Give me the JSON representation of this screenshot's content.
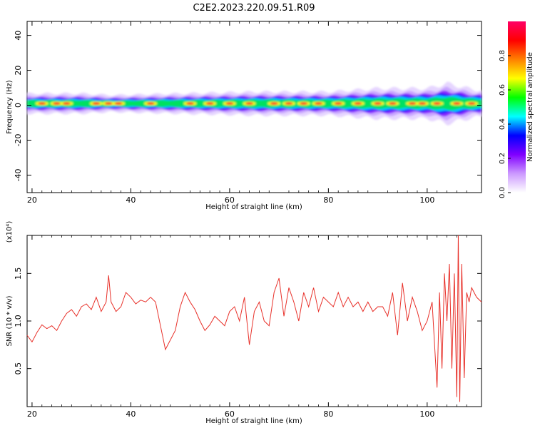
{
  "figure_title": "C2E2.2023.220.09.51.R09",
  "chart_data": [
    {
      "type": "heatmap",
      "title": "",
      "xlabel": "Height of straight line (km)",
      "ylabel": "Frequency (Hz)",
      "xlim": [
        19,
        111
      ],
      "ylim": [
        -50,
        48
      ],
      "xticks": [
        "20",
        "40",
        "60",
        "80",
        "100"
      ],
      "yticks": [
        "-40",
        "-20",
        "0",
        "20",
        "40"
      ],
      "colorbar": {
        "label": "Normalized spectral amplitude",
        "range": [
          0,
          1
        ],
        "ticks": [
          "0.0",
          "0.2",
          "0.4",
          "0.6",
          "0.8"
        ],
        "colors": [
          "#ffffff",
          "#cc99ff",
          "#8000ff",
          "#0000ff",
          "#00ffff",
          "#00ff00",
          "#ffff00",
          "#ff8000",
          "#ff0000",
          "#ff0066"
        ]
      },
      "band": {
        "center_freq_hz": 1,
        "halfwidth_hz_by_height": [
          [
            20,
            3
          ],
          [
            30,
            3
          ],
          [
            36,
            2.5
          ],
          [
            50,
            3
          ],
          [
            65,
            3.5
          ],
          [
            80,
            3.5
          ],
          [
            90,
            4.5
          ],
          [
            100,
            4.5
          ],
          [
            104,
            6
          ],
          [
            110,
            4
          ]
        ],
        "peak_heights_km": [
          22,
          25,
          27,
          33,
          35.5,
          37.5,
          44,
          52,
          56,
          60,
          64,
          69,
          72,
          75,
          78,
          82,
          86,
          90,
          93,
          97,
          99,
          102,
          106,
          109
        ]
      }
    },
    {
      "type": "line",
      "title": "",
      "xlabel": "Height of straight line (km)",
      "ylabel": "SNR (10 * v/v)",
      "scale_label": "(x10⁴)",
      "xlim": [
        19,
        111
      ],
      "ylim": [
        0.1,
        1.9
      ],
      "xticks": [
        "20",
        "40",
        "60",
        "80",
        "100"
      ],
      "yticks": [
        "0.5",
        "1.0",
        "1.5"
      ],
      "line_color": "#e8312a",
      "series": [
        {
          "x": [
            19,
            20,
            21,
            22,
            23,
            24,
            25,
            26,
            27,
            28,
            29,
            30,
            31,
            32,
            33,
            34,
            35,
            35.5,
            36,
            37,
            38,
            39,
            40,
            41,
            42,
            43,
            44,
            45,
            46,
            47,
            48,
            49,
            50,
            51,
            52,
            53,
            54,
            55,
            56,
            57,
            58,
            59,
            60,
            61,
            62,
            63,
            64,
            65,
            66,
            67,
            68,
            69,
            70,
            71,
            72,
            73,
            74,
            75,
            76,
            77,
            78,
            79,
            80,
            81,
            82,
            83,
            84,
            85,
            86,
            87,
            88,
            89,
            90,
            91,
            92,
            93,
            94,
            95,
            96,
            97,
            98,
            99,
            100,
            101,
            102,
            102.5,
            103,
            103.5,
            104,
            104.5,
            105,
            105.5,
            106,
            106.3,
            106.6,
            107,
            107.5,
            108,
            108.5,
            109,
            110,
            111
          ],
          "y": [
            0.85,
            0.78,
            0.88,
            0.96,
            0.92,
            0.95,
            0.9,
            1.0,
            1.08,
            1.12,
            1.05,
            1.15,
            1.18,
            1.12,
            1.25,
            1.1,
            1.2,
            1.48,
            1.2,
            1.1,
            1.15,
            1.3,
            1.25,
            1.18,
            1.22,
            1.2,
            1.25,
            1.2,
            0.95,
            0.7,
            0.8,
            0.9,
            1.15,
            1.3,
            1.2,
            1.12,
            1.0,
            0.9,
            0.96,
            1.05,
            1.0,
            0.95,
            1.1,
            1.15,
            1.0,
            1.25,
            0.75,
            1.1,
            1.2,
            1.0,
            0.95,
            1.3,
            1.45,
            1.05,
            1.35,
            1.2,
            1.0,
            1.3,
            1.15,
            1.35,
            1.1,
            1.25,
            1.2,
            1.15,
            1.3,
            1.15,
            1.25,
            1.15,
            1.2,
            1.1,
            1.2,
            1.1,
            1.15,
            1.15,
            1.05,
            1.3,
            0.85,
            1.4,
            1.0,
            1.25,
            1.1,
            0.9,
            1.0,
            1.2,
            0.3,
            1.3,
            0.5,
            1.5,
            1.0,
            1.6,
            0.5,
            1.5,
            0.2,
            1.9,
            0.15,
            1.6,
            0.4,
            1.3,
            1.2,
            1.35,
            1.25,
            1.2
          ]
        }
      ]
    }
  ]
}
